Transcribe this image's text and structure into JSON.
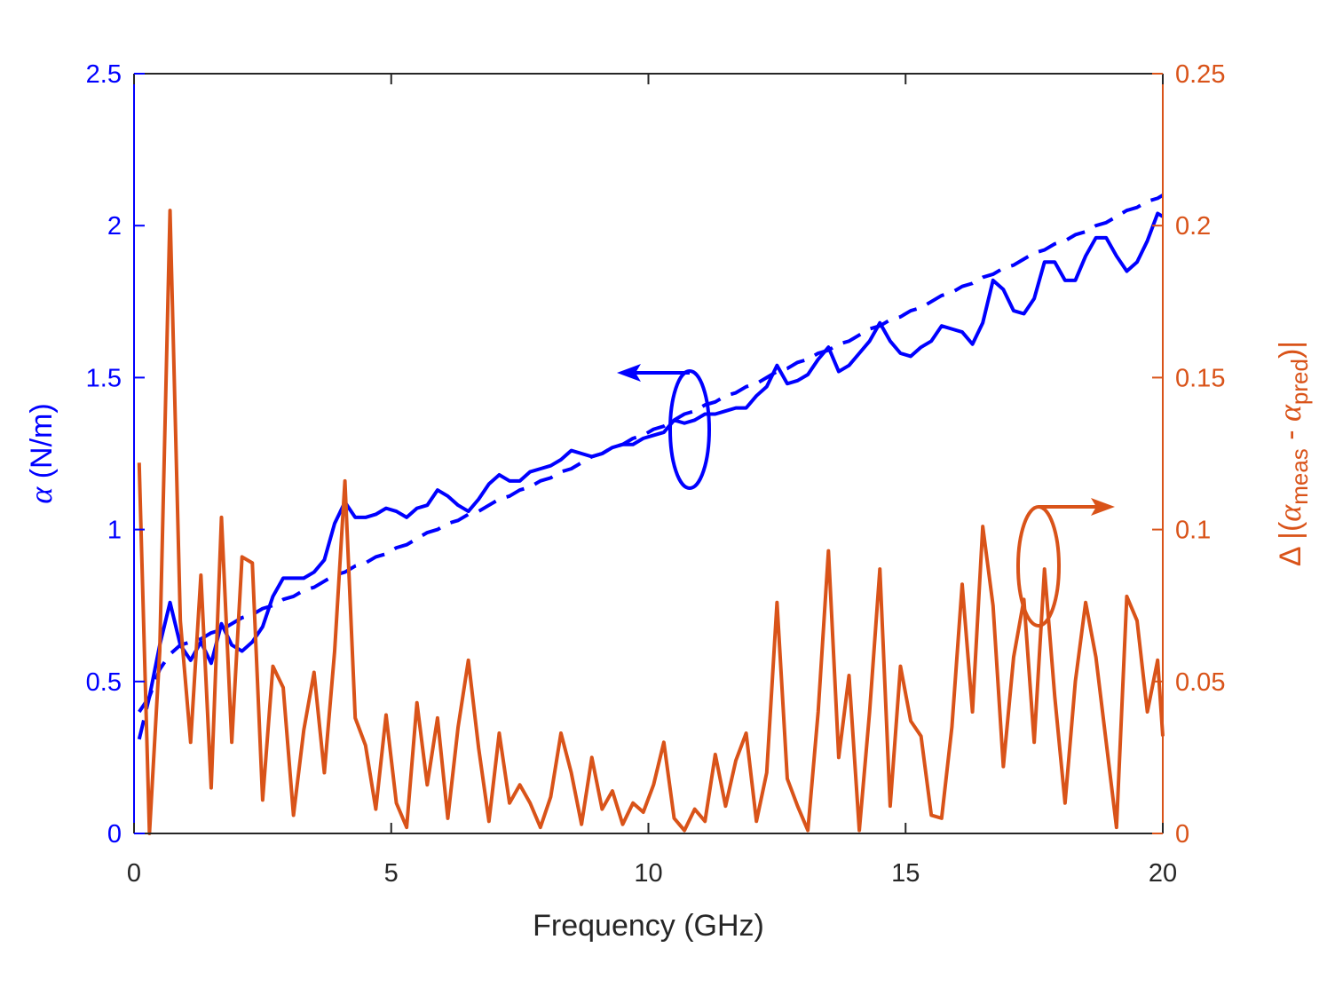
{
  "chart_data": {
    "type": "line",
    "xlabel": "Frequency (GHz)",
    "ylabel": [
      {
        "text": "α",
        "style": "italic"
      },
      {
        "text": " (N/m)"
      }
    ],
    "y2label": [
      {
        "text": "Δ |("
      },
      {
        "text": "α",
        "style": "italic"
      },
      {
        "text": "meas",
        "style": "sub"
      },
      {
        "text": " - "
      },
      {
        "text": "α",
        "style": "italic"
      },
      {
        "text": "pred",
        "style": "sub"
      },
      {
        "text": ")|"
      }
    ],
    "xlim": [
      0,
      20
    ],
    "xticks": [
      0,
      5,
      10,
      15,
      20
    ],
    "ylim": [
      0,
      2.5
    ],
    "yticks": [
      0,
      0.5,
      1,
      1.5,
      2,
      2.5
    ],
    "y2lim": [
      0,
      0.25
    ],
    "y2ticks": [
      0,
      0.05,
      0.1,
      0.15,
      0.2,
      0.25
    ],
    "ycolor": "#0000ff",
    "y2color": "#d95319",
    "xcolor": "#262626",
    "x": [
      0.1,
      0.3,
      0.5,
      0.7,
      0.9,
      1.1,
      1.3,
      1.5,
      1.7,
      1.9,
      2.1,
      2.3,
      2.5,
      2.7,
      2.9,
      3.1,
      3.3,
      3.5,
      3.7,
      3.9,
      4.1,
      4.3,
      4.5,
      4.7,
      4.9,
      5.1,
      5.3,
      5.5,
      5.7,
      5.9,
      6.1,
      6.3,
      6.5,
      6.7,
      6.9,
      7.1,
      7.3,
      7.5,
      7.7,
      7.9,
      8.1,
      8.3,
      8.5,
      8.7,
      8.9,
      9.1,
      9.3,
      9.5,
      9.7,
      9.9,
      10.1,
      10.3,
      10.5,
      10.7,
      10.9,
      11.1,
      11.3,
      11.5,
      11.7,
      11.9,
      12.1,
      12.3,
      12.5,
      12.7,
      12.9,
      13.1,
      13.3,
      13.5,
      13.7,
      13.9,
      14.1,
      14.3,
      14.5,
      14.7,
      14.9,
      15.1,
      15.3,
      15.5,
      15.7,
      15.9,
      16.1,
      16.3,
      16.5,
      16.7,
      16.9,
      17.1,
      17.3,
      17.5,
      17.7,
      17.9,
      18.1,
      18.3,
      18.5,
      18.7,
      18.9,
      19.1,
      19.3,
      19.5,
      19.7,
      19.9,
      20
    ],
    "series": [
      {
        "color": "#0000ff",
        "linestyle": "solid",
        "values": [
          0.4,
          0.45,
          0.62,
          0.76,
          0.62,
          0.57,
          0.63,
          0.56,
          0.69,
          0.62,
          0.6,
          0.63,
          0.68,
          0.78,
          0.84,
          0.84,
          0.84,
          0.86,
          0.9,
          1.02,
          1.09,
          1.04,
          1.04,
          1.05,
          1.07,
          1.06,
          1.04,
          1.07,
          1.08,
          1.13,
          1.11,
          1.08,
          1.06,
          1.1,
          1.15,
          1.18,
          1.16,
          1.16,
          1.19,
          1.2,
          1.21,
          1.23,
          1.26,
          1.25,
          1.24,
          1.25,
          1.27,
          1.28,
          1.28,
          1.3,
          1.31,
          1.32,
          1.36,
          1.35,
          1.36,
          1.38,
          1.38,
          1.39,
          1.4,
          1.4,
          1.44,
          1.47,
          1.54,
          1.48,
          1.49,
          1.51,
          1.56,
          1.6,
          1.52,
          1.54,
          1.58,
          1.62,
          1.68,
          1.62,
          1.58,
          1.57,
          1.6,
          1.62,
          1.67,
          1.66,
          1.65,
          1.61,
          1.68,
          1.82,
          1.79,
          1.72,
          1.71,
          1.76,
          1.88,
          1.88,
          1.82,
          1.82,
          1.9,
          1.96,
          1.96,
          1.9,
          1.85,
          1.88,
          1.95,
          2.04,
          2.03
        ]
      },
      {
        "color": "#0000ff",
        "linestyle": "dashed",
        "values": [
          0.31,
          0.45,
          0.54,
          0.59,
          0.62,
          0.63,
          0.64,
          0.66,
          0.67,
          0.69,
          0.71,
          0.72,
          0.74,
          0.75,
          0.77,
          0.78,
          0.8,
          0.81,
          0.83,
          0.85,
          0.86,
          0.88,
          0.89,
          0.91,
          0.92,
          0.94,
          0.95,
          0.97,
          0.99,
          1.0,
          1.02,
          1.03,
          1.05,
          1.06,
          1.08,
          1.1,
          1.11,
          1.13,
          1.14,
          1.16,
          1.17,
          1.19,
          1.2,
          1.22,
          1.24,
          1.25,
          1.27,
          1.28,
          1.3,
          1.31,
          1.33,
          1.34,
          1.36,
          1.38,
          1.39,
          1.41,
          1.42,
          1.44,
          1.45,
          1.47,
          1.48,
          1.5,
          1.52,
          1.53,
          1.55,
          1.56,
          1.58,
          1.59,
          1.61,
          1.62,
          1.64,
          1.66,
          1.67,
          1.69,
          1.7,
          1.72,
          1.73,
          1.75,
          1.77,
          1.78,
          1.8,
          1.81,
          1.83,
          1.84,
          1.86,
          1.87,
          1.89,
          1.91,
          1.92,
          1.94,
          1.95,
          1.97,
          1.98,
          2.0,
          2.01,
          2.03,
          2.05,
          2.06,
          2.08,
          2.09,
          2.1
        ]
      },
      {
        "color": "#d95319",
        "linestyle": "solid",
        "axis": "y2",
        "values": [
          0.122,
          0.0,
          0.06,
          0.205,
          0.07,
          0.03,
          0.085,
          0.015,
          0.104,
          0.03,
          0.091,
          0.089,
          0.011,
          0.055,
          0.048,
          0.006,
          0.034,
          0.053,
          0.02,
          0.06,
          0.116,
          0.038,
          0.029,
          0.008,
          0.039,
          0.01,
          0.002,
          0.043,
          0.016,
          0.038,
          0.005,
          0.035,
          0.057,
          0.028,
          0.004,
          0.033,
          0.01,
          0.016,
          0.01,
          0.002,
          0.012,
          0.033,
          0.02,
          0.003,
          0.025,
          0.008,
          0.014,
          0.003,
          0.01,
          0.007,
          0.016,
          0.03,
          0.005,
          0.001,
          0.008,
          0.004,
          0.026,
          0.009,
          0.024,
          0.033,
          0.004,
          0.02,
          0.076,
          0.018,
          0.009,
          0.001,
          0.04,
          0.093,
          0.025,
          0.052,
          0.001,
          0.04,
          0.087,
          0.009,
          0.055,
          0.037,
          0.032,
          0.006,
          0.005,
          0.035,
          0.082,
          0.04,
          0.101,
          0.075,
          0.022,
          0.058,
          0.077,
          0.03,
          0.087,
          0.045,
          0.01,
          0.05,
          0.076,
          0.058,
          0.03,
          0.002,
          0.078,
          0.07,
          0.04,
          0.057,
          0.032
        ]
      }
    ]
  }
}
